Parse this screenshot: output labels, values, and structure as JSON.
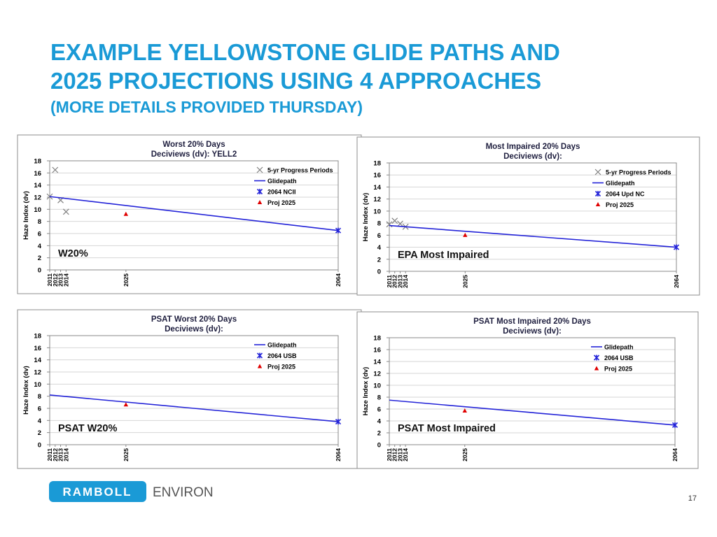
{
  "slide": {
    "title_lines": [
      "EXAMPLE YELLOWSTONE GLIDE PATHS AND",
      "2025 PROJECTIONS USING 4 APPROACHES",
      "(MORE DETAILS PROVIDED THURSDAY)"
    ],
    "logo_mark": "RAMBOLL",
    "logo_text": "ENVIRON",
    "page_number": "17"
  },
  "chart_data": [
    {
      "type": "line",
      "title": "Worst 20% Days",
      "subtitle": "Deciviews (dv): YELL2",
      "y_label": "Haze Index (dv)",
      "annotation": "W20%",
      "xlim": [
        2011,
        2064
      ],
      "xticks": [
        2011,
        2012,
        2013,
        2014,
        2025,
        2064
      ],
      "ylim": [
        0,
        18
      ],
      "yticks": [
        0,
        2,
        4,
        6,
        8,
        10,
        12,
        14,
        16,
        18
      ],
      "grid": true,
      "series": [
        {
          "name": "5-yr Progress Periods",
          "marker": "x",
          "color": "#808080",
          "x": [
            2011,
            2012,
            2013,
            2014
          ],
          "values": [
            12.1,
            16.5,
            11.5,
            9.6
          ]
        },
        {
          "name": "Glidepath",
          "marker": "line",
          "color": "#2323d8",
          "x": [
            2011,
            2064
          ],
          "values": [
            12.1,
            6.5
          ]
        },
        {
          "name": "2064 NCII",
          "marker": "asterisk",
          "color": "#2323d8",
          "x": [
            2064
          ],
          "values": [
            6.5
          ]
        },
        {
          "name": "Proj 2025",
          "marker": "triangle",
          "color": "#e00000",
          "x": [
            2025
          ],
          "values": [
            9.2
          ]
        }
      ]
    },
    {
      "type": "line",
      "title": "Most Impaired 20% Days",
      "subtitle": "Deciviews (dv):",
      "y_label": "Haze Index (dv)",
      "annotation": "EPA Most Impaired",
      "xlim": [
        2011,
        2064
      ],
      "xticks": [
        2011,
        2012,
        2013,
        2014,
        2025,
        2064
      ],
      "ylim": [
        0,
        18
      ],
      "yticks": [
        0,
        2,
        4,
        6,
        8,
        10,
        12,
        14,
        16,
        18
      ],
      "grid": true,
      "series": [
        {
          "name": "5-yr Progress Periods",
          "marker": "x",
          "color": "#808080",
          "x": [
            2011,
            2012,
            2013,
            2014
          ],
          "values": [
            7.8,
            8.4,
            7.9,
            7.4
          ]
        },
        {
          "name": "Glidepath",
          "marker": "line",
          "color": "#2323d8",
          "x": [
            2011,
            2064
          ],
          "values": [
            7.6,
            4.0
          ]
        },
        {
          "name": "2064 Upd NC",
          "marker": "asterisk",
          "color": "#2323d8",
          "x": [
            2064
          ],
          "values": [
            4.0
          ]
        },
        {
          "name": "Proj 2025",
          "marker": "triangle",
          "color": "#e00000",
          "x": [
            2025
          ],
          "values": [
            6.0
          ]
        }
      ]
    },
    {
      "type": "line",
      "title": "PSAT Worst 20% Days",
      "subtitle": "Deciviews (dv):",
      "y_label": "Haze Index (dv)",
      "annotation": "PSAT W20%",
      "xlim": [
        2011,
        2064
      ],
      "xticks": [
        2011,
        2012,
        2013,
        2014,
        2025,
        2064
      ],
      "ylim": [
        0,
        18
      ],
      "yticks": [
        0,
        2,
        4,
        6,
        8,
        10,
        12,
        14,
        16,
        18
      ],
      "grid": true,
      "series": [
        {
          "name": "Glidepath",
          "marker": "line",
          "color": "#2323d8",
          "x": [
            2011,
            2064
          ],
          "values": [
            8.2,
            3.8
          ]
        },
        {
          "name": "2064 USB",
          "marker": "asterisk",
          "color": "#2323d8",
          "x": [
            2064
          ],
          "values": [
            3.8
          ]
        },
        {
          "name": "Proj 2025",
          "marker": "triangle",
          "color": "#e00000",
          "x": [
            2025
          ],
          "values": [
            6.6
          ]
        }
      ]
    },
    {
      "type": "line",
      "title": "PSAT Most Impaired 20% Days",
      "subtitle": "Deciviews (dv):",
      "y_label": "Haze Index (dv)",
      "annotation": "PSAT Most Impaired",
      "xlim": [
        2011,
        2064
      ],
      "xticks": [
        2011,
        2012,
        2013,
        2014,
        2025,
        2064
      ],
      "ylim": [
        0,
        18
      ],
      "yticks": [
        0,
        2,
        4,
        6,
        8,
        10,
        12,
        14,
        16,
        18
      ],
      "grid": true,
      "series": [
        {
          "name": "Glidepath",
          "marker": "line",
          "color": "#2323d8",
          "x": [
            2011,
            2064
          ],
          "values": [
            7.5,
            3.3
          ]
        },
        {
          "name": "2064 USB",
          "marker": "asterisk",
          "color": "#2323d8",
          "x": [
            2064
          ],
          "values": [
            3.3
          ]
        },
        {
          "name": "Proj 2025",
          "marker": "triangle",
          "color": "#e00000",
          "x": [
            2025
          ],
          "values": [
            5.7
          ]
        }
      ]
    }
  ]
}
